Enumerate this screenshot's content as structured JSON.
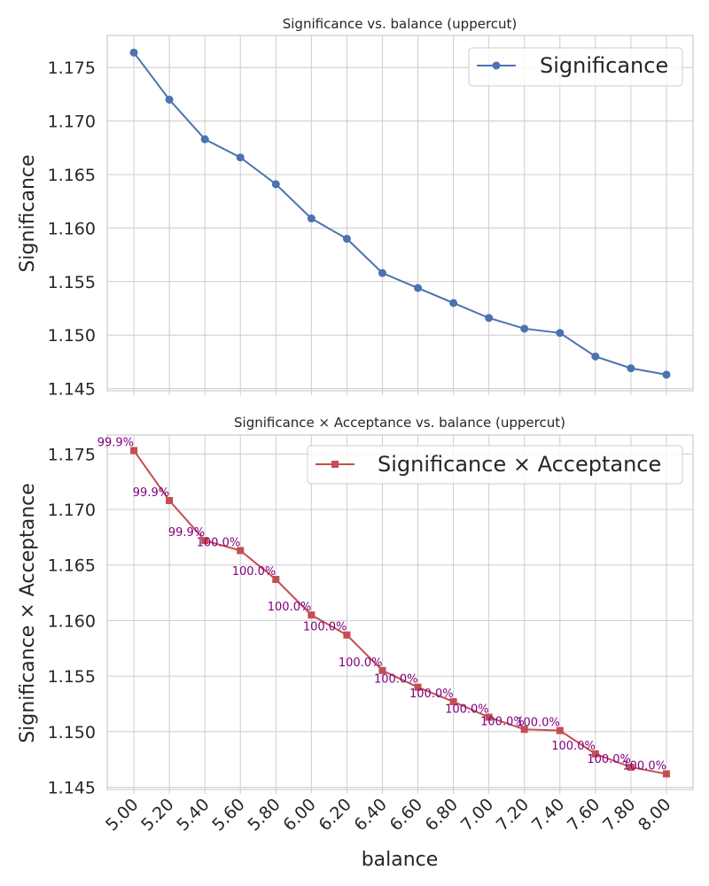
{
  "chart_data": [
    {
      "type": "line",
      "title": "Significance vs. balance (uppercut)",
      "xlabel": "",
      "ylabel": "Significance",
      "ylim": [
        1.1448,
        1.178
      ],
      "yticks": [
        "1.145",
        "1.150",
        "1.155",
        "1.160",
        "1.165",
        "1.170",
        "1.175"
      ],
      "grid": true,
      "legend_position": "top-right",
      "series": [
        {
          "name": "Significance",
          "color": "#4c72b0",
          "marker": "circle",
          "x": [
            5.0,
            5.2,
            5.4,
            5.6,
            5.8,
            6.0,
            6.2,
            6.4,
            6.6,
            6.8,
            7.0,
            7.2,
            7.4,
            7.6,
            7.8,
            8.0
          ],
          "values": [
            1.1764,
            1.172,
            1.1683,
            1.1666,
            1.1641,
            1.1609,
            1.159,
            1.1558,
            1.1544,
            1.153,
            1.1516,
            1.1506,
            1.1502,
            1.148,
            1.1469,
            1.1463
          ]
        }
      ]
    },
    {
      "type": "line",
      "title": "Significance × Acceptance vs. balance (uppercut)",
      "xlabel": "balance",
      "ylabel": "Significance × Acceptance",
      "ylim": [
        1.1448,
        1.1767
      ],
      "yticks": [
        "1.145",
        "1.150",
        "1.155",
        "1.160",
        "1.165",
        "1.170",
        "1.175"
      ],
      "x_tick_labels": [
        "5.00",
        "5.20",
        "5.40",
        "5.60",
        "5.80",
        "6.00",
        "6.20",
        "6.40",
        "6.60",
        "6.80",
        "7.00",
        "7.20",
        "7.40",
        "7.60",
        "7.80",
        "8.00"
      ],
      "grid": true,
      "legend_position": "top-right",
      "series": [
        {
          "name": "Significance × Acceptance",
          "color": "#c44e52",
          "marker": "square",
          "x": [
            5.0,
            5.2,
            5.4,
            5.6,
            5.8,
            6.0,
            6.2,
            6.4,
            6.6,
            6.8,
            7.0,
            7.2,
            7.4,
            7.6,
            7.8,
            8.0
          ],
          "values": [
            1.1753,
            1.1708,
            1.1672,
            1.1663,
            1.1637,
            1.1605,
            1.1587,
            1.1555,
            1.154,
            1.1527,
            1.1513,
            1.1502,
            1.1501,
            1.148,
            1.1468,
            1.1462
          ],
          "data_labels": [
            "99.9%",
            "99.9%",
            "99.9%",
            "100.0%",
            "100.0%",
            "100.0%",
            "100.0%",
            "100.0%",
            "100.0%",
            "100.0%",
            "100.0%",
            "100.0%",
            "100.0%",
            "100.0%",
            "100.0%",
            "100.0%"
          ],
          "data_label_color": "#800080"
        }
      ]
    }
  ]
}
